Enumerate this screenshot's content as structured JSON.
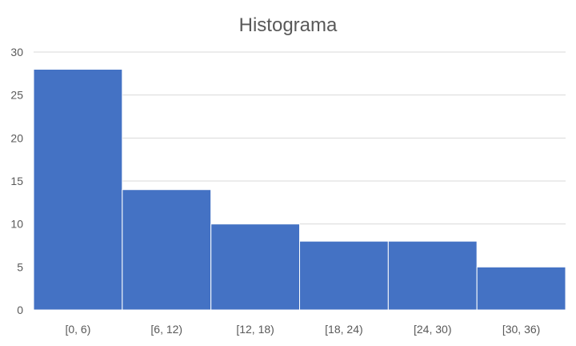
{
  "chart_data": {
    "type": "bar",
    "title": "Histograma",
    "xlabel": "",
    "ylabel": "",
    "categories": [
      "[0, 6)",
      "[6, 12)",
      "[12, 18)",
      "[18, 24)",
      "[24, 30)",
      "[30, 36)"
    ],
    "values": [
      28,
      14,
      10,
      8,
      8,
      5
    ],
    "ylim": [
      0,
      30
    ],
    "yticks": [
      0,
      5,
      10,
      15,
      20,
      25,
      30
    ],
    "grid": true,
    "legend": "none",
    "bar_color": "#4472C4",
    "bar_edge_color": "#ffffff"
  }
}
